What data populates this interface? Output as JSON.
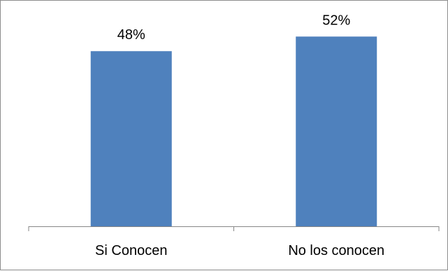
{
  "chart_data": {
    "type": "bar",
    "categories": [
      "Si Conocen",
      "No los conocen"
    ],
    "values": [
      48,
      52
    ],
    "data_labels": [
      "48%",
      "52%"
    ],
    "title": "",
    "xlabel": "",
    "ylabel": "",
    "ylim": [
      0,
      58
    ],
    "grid": false,
    "legend": "none",
    "bar_color": "#4f81bd",
    "axis_color": "#868686"
  }
}
